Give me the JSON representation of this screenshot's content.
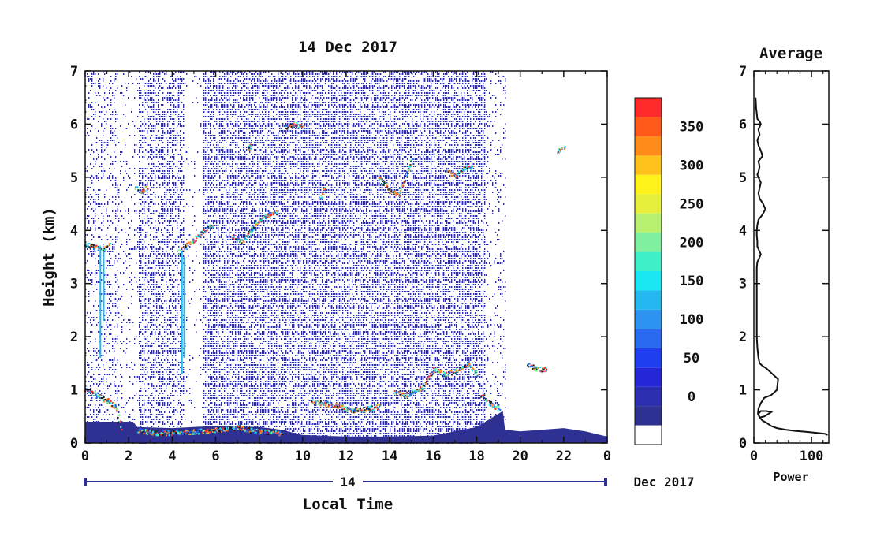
{
  "chart_data": [
    {
      "type": "heatmap",
      "title": "14 Dec 2017",
      "xlabel": "Local Time",
      "ylabel": "Height (km)",
      "xlim": [
        0,
        24
      ],
      "ylim": [
        0,
        7
      ],
      "x_ticks": [
        "0",
        "2",
        "4",
        "6",
        "8",
        "10",
        "12",
        "14",
        "16",
        "18",
        "20",
        "22",
        "0"
      ],
      "y_ticks": [
        "0",
        "1",
        "2",
        "3",
        "4",
        "5",
        "6",
        "7"
      ],
      "date_bar_label": "14",
      "date_suffix": "Dec 2017",
      "colorbar": {
        "ticks": [
          "0",
          "50",
          "100",
          "150",
          "200",
          "250",
          "300",
          "350"
        ],
        "bins": [
          {
            "lo": -50,
            "hi": -25,
            "color": "#ffffff"
          },
          {
            "lo": -25,
            "hi": 0,
            "color": "#2e3192"
          },
          {
            "lo": 0,
            "hi": 25,
            "color": "#2b2fb0"
          },
          {
            "lo": 25,
            "hi": 50,
            "color": "#2626d9"
          },
          {
            "lo": 50,
            "hi": 75,
            "color": "#1e3ef0"
          },
          {
            "lo": 75,
            "hi": 100,
            "color": "#2a6af0"
          },
          {
            "lo": 100,
            "hi": 125,
            "color": "#2c93f0"
          },
          {
            "lo": 125,
            "hi": 150,
            "color": "#23b8f0"
          },
          {
            "lo": 150,
            "hi": 175,
            "color": "#19e6f0"
          },
          {
            "lo": 175,
            "hi": 200,
            "color": "#3ef0c8"
          },
          {
            "lo": 200,
            "hi": 225,
            "color": "#7ef0a0"
          },
          {
            "lo": 225,
            "hi": 250,
            "color": "#b8f070"
          },
          {
            "lo": 250,
            "hi": 275,
            "color": "#e6f03c"
          },
          {
            "lo": 275,
            "hi": 300,
            "color": "#fff21a"
          },
          {
            "lo": 300,
            "hi": 325,
            "color": "#ffc21a"
          },
          {
            "lo": 325,
            "hi": 350,
            "color": "#ff8c1a"
          },
          {
            "lo": 350,
            "hi": 375,
            "color": "#ff5a1a"
          },
          {
            "lo": 375,
            "hi": 400,
            "color": "#ff2a2a"
          }
        ]
      },
      "features": {
        "near_surface_layer": [
          [
            0,
            0.4
          ],
          [
            2.2,
            0.4
          ],
          [
            2.4,
            0.3
          ],
          [
            4,
            0.28
          ],
          [
            6,
            0.32
          ],
          [
            8,
            0.3
          ],
          [
            9,
            0.25
          ],
          [
            10,
            0.15
          ],
          [
            12,
            0.12
          ],
          [
            14,
            0.12
          ],
          [
            16,
            0.14
          ],
          [
            18,
            0.3
          ],
          [
            19.2,
            0.6
          ],
          [
            19.3,
            0.25
          ],
          [
            20,
            0.22
          ],
          [
            22,
            0.28
          ],
          [
            23,
            0.22
          ],
          [
            24,
            0.12
          ]
        ],
        "strong_echo_segments": [
          {
            "points": [
              [
                0,
                3.75
              ],
              [
                0.4,
                3.7
              ],
              [
                0.8,
                3.65
              ],
              [
                1.1,
                3.75
              ]
            ]
          },
          {
            "points": [
              [
                2.3,
                4.8
              ],
              [
                2.6,
                4.75
              ],
              [
                2.8,
                4.8
              ]
            ]
          },
          {
            "points": [
              [
                4.3,
                3.6
              ],
              [
                4.6,
                3.7
              ],
              [
                4.9,
                3.8
              ],
              [
                5.3,
                3.95
              ],
              [
                5.8,
                4.1
              ]
            ]
          },
          {
            "points": [
              [
                6.8,
                3.9
              ],
              [
                7.2,
                3.8
              ],
              [
                7.6,
                4.0
              ],
              [
                8.0,
                4.2
              ],
              [
                8.4,
                4.3
              ],
              [
                8.8,
                4.35
              ]
            ]
          },
          {
            "points": [
              [
                7.5,
                5.55
              ],
              [
                7.6,
                5.6
              ]
            ]
          },
          {
            "points": [
              [
                9.2,
                5.95
              ],
              [
                9.6,
                6.0
              ],
              [
                10.0,
                5.95
              ]
            ]
          },
          {
            "points": [
              [
                10.8,
                4.6
              ],
              [
                11.0,
                4.8
              ]
            ]
          },
          {
            "points": [
              [
                13.5,
                5.0
              ],
              [
                14.0,
                4.75
              ],
              [
                14.4,
                4.7
              ],
              [
                14.8,
                5.1
              ],
              [
                15.0,
                5.4
              ]
            ]
          },
          {
            "points": [
              [
                16.6,
                5.1
              ],
              [
                17.0,
                5.05
              ],
              [
                17.5,
                5.2
              ],
              [
                17.8,
                5.2
              ]
            ]
          },
          {
            "points": [
              [
                21.7,
                5.5
              ],
              [
                22.0,
                5.55
              ]
            ]
          },
          {
            "points": [
              [
                0,
                1.0
              ],
              [
                0.3,
                0.95
              ],
              [
                0.6,
                0.9
              ],
              [
                1.0,
                0.8
              ],
              [
                1.4,
                0.7
              ],
              [
                1.6,
                0.3
              ]
            ]
          },
          {
            "points": [
              [
                2.4,
                0.25
              ],
              [
                3.0,
                0.2
              ],
              [
                4.0,
                0.2
              ],
              [
                5.0,
                0.22
              ],
              [
                6.0,
                0.25
              ],
              [
                7.0,
                0.3
              ],
              [
                8.0,
                0.22
              ],
              [
                9.0,
                0.2
              ]
            ]
          },
          {
            "points": [
              [
                10.4,
                0.8
              ],
              [
                11.0,
                0.75
              ],
              [
                11.5,
                0.72
              ],
              [
                12.0,
                0.65
              ],
              [
                12.5,
                0.62
              ],
              [
                13.0,
                0.65
              ],
              [
                13.5,
                0.7
              ]
            ]
          },
          {
            "points": [
              [
                14.2,
                1.0
              ],
              [
                14.6,
                0.9
              ],
              [
                15.0,
                0.95
              ],
              [
                15.5,
                1.05
              ],
              [
                16.0,
                1.4
              ],
              [
                16.5,
                1.3
              ],
              [
                17.0,
                1.35
              ],
              [
                17.6,
                1.5
              ],
              [
                18.0,
                1.3
              ]
            ]
          },
          {
            "points": [
              [
                18.2,
                0.9
              ],
              [
                18.6,
                0.75
              ],
              [
                19.0,
                0.65
              ]
            ]
          },
          {
            "points": [
              [
                20.3,
                1.5
              ],
              [
                20.7,
                1.4
              ],
              [
                21.2,
                1.4
              ]
            ]
          }
        ]
      }
    },
    {
      "type": "line",
      "title": "Average",
      "xlabel": "Power",
      "ylabel": "",
      "xlim": [
        0,
        130
      ],
      "ylim": [
        0,
        7
      ],
      "x_ticks": [
        "0",
        "100"
      ],
      "y_ticks": [
        "0",
        "1",
        "2",
        "3",
        "4",
        "5",
        "6",
        "7"
      ],
      "series": [
        {
          "x": [
            128,
            125,
            110,
            90,
            70,
            55,
            40,
            30,
            22,
            15,
            10,
            8,
            12,
            22,
            30,
            18,
            10,
            7,
            8,
            12,
            18,
            30,
            40,
            42,
            32,
            22,
            15,
            10,
            8,
            6,
            5,
            5,
            5,
            5,
            5,
            6,
            8,
            12,
            8,
            6,
            6,
            5,
            5,
            6,
            8,
            15,
            20,
            16,
            10,
            8,
            10,
            12,
            8,
            6,
            8,
            10,
            8,
            15,
            12,
            8,
            6,
            10,
            8,
            12,
            10,
            6,
            5,
            4,
            3
          ],
          "y": [
            0.15,
            0.17,
            0.19,
            0.21,
            0.23,
            0.25,
            0.28,
            0.32,
            0.38,
            0.42,
            0.48,
            0.55,
            0.6,
            0.6,
            0.58,
            0.5,
            0.48,
            0.55,
            0.65,
            0.75,
            0.85,
            0.9,
            1.0,
            1.2,
            1.3,
            1.4,
            1.45,
            1.5,
            1.6,
            1.8,
            2.0,
            2.4,
            2.8,
            3.0,
            3.3,
            3.4,
            3.45,
            3.55,
            3.65,
            3.7,
            3.8,
            3.9,
            4.0,
            4.1,
            4.2,
            4.3,
            4.4,
            4.5,
            4.6,
            4.7,
            4.8,
            4.9,
            5.0,
            5.05,
            5.1,
            5.2,
            5.3,
            5.4,
            5.5,
            5.6,
            5.7,
            5.8,
            5.9,
            6.0,
            6.05,
            6.1,
            6.2,
            6.3,
            6.5
          ]
        }
      ]
    }
  ]
}
